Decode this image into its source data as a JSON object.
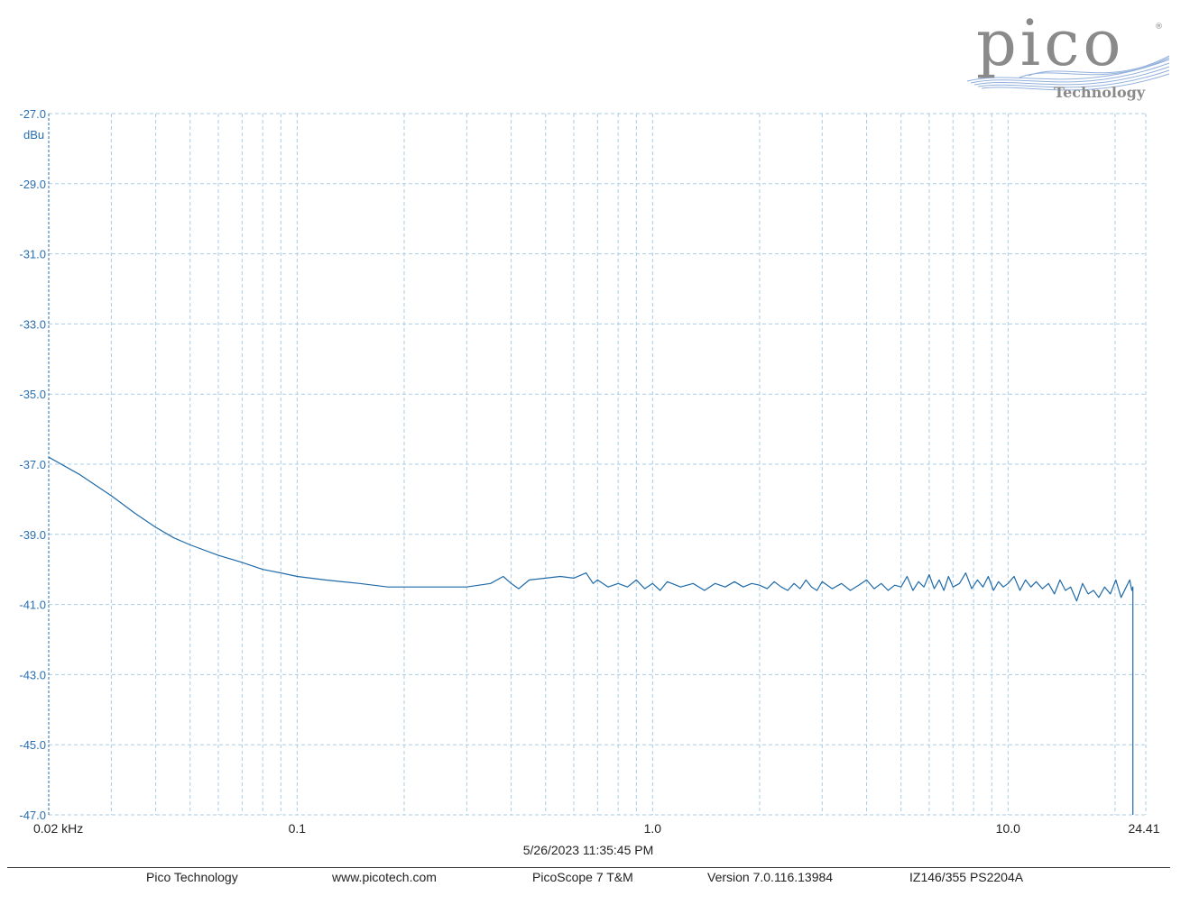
{
  "logo": {
    "wordmark": "pico",
    "subtitle": "Technology"
  },
  "chart_data": {
    "type": "line",
    "title": "",
    "xlabel": "",
    "ylabel": "",
    "y_unit": "dBu",
    "x_scale": "log",
    "xlim": [
      0.02,
      24.41
    ],
    "ylim": [
      -47.0,
      -27.0
    ],
    "x_tick_labels": [
      {
        "value": 0.02,
        "label": "0.02 kHz"
      },
      {
        "value": 0.1,
        "label": "0.1"
      },
      {
        "value": 1.0,
        "label": "1.0"
      },
      {
        "value": 10.0,
        "label": "10.0"
      },
      {
        "value": 24.41,
        "label": "24.41"
      }
    ],
    "y_tick_labels": [
      "-27.0",
      "-29.0",
      "-31.0",
      "-33.0",
      "-35.0",
      "-37.0",
      "-39.0",
      "-41.0",
      "-43.0",
      "-45.0",
      "-47.0"
    ],
    "grid": true,
    "grid_style": "dashed",
    "series_color": "#1f6aa8",
    "series": [
      {
        "name": "",
        "x": [
          0.02,
          0.0245,
          0.03,
          0.035,
          0.04,
          0.045,
          0.05,
          0.06,
          0.07,
          0.08,
          0.09,
          0.1,
          0.12,
          0.15,
          0.18,
          0.2,
          0.25,
          0.3,
          0.35,
          0.38,
          0.4,
          0.42,
          0.45,
          0.5,
          0.55,
          0.6,
          0.65,
          0.68,
          0.7,
          0.75,
          0.8,
          0.85,
          0.9,
          0.95,
          1.0,
          1.05,
          1.1,
          1.2,
          1.3,
          1.4,
          1.5,
          1.6,
          1.7,
          1.8,
          1.9,
          2.0,
          2.1,
          2.2,
          2.3,
          2.4,
          2.5,
          2.6,
          2.7,
          2.8,
          2.9,
          3.0,
          3.2,
          3.4,
          3.6,
          3.8,
          4.0,
          4.2,
          4.4,
          4.6,
          4.8,
          5.0,
          5.2,
          5.4,
          5.6,
          5.8,
          6.0,
          6.2,
          6.4,
          6.6,
          6.8,
          7.0,
          7.3,
          7.6,
          7.9,
          8.2,
          8.5,
          8.8,
          9.1,
          9.4,
          9.7,
          10.0,
          10.4,
          10.8,
          11.2,
          11.6,
          12.0,
          12.5,
          13.0,
          13.5,
          14.0,
          14.5,
          15.0,
          15.6,
          16.2,
          16.8,
          17.4,
          18.0,
          18.7,
          19.4,
          20.1,
          20.8,
          21.5,
          22.0,
          22.3,
          22.45
        ],
        "y": [
          -36.8,
          -37.3,
          -37.9,
          -38.4,
          -38.8,
          -39.1,
          -39.3,
          -39.6,
          -39.8,
          -40.0,
          -40.1,
          -40.2,
          -40.3,
          -40.4,
          -40.5,
          -40.5,
          -40.5,
          -40.5,
          -40.4,
          -40.2,
          -40.4,
          -40.55,
          -40.3,
          -40.25,
          -40.2,
          -40.25,
          -40.1,
          -40.4,
          -40.3,
          -40.5,
          -40.4,
          -40.5,
          -40.3,
          -40.55,
          -40.4,
          -40.6,
          -40.35,
          -40.5,
          -40.4,
          -40.6,
          -40.4,
          -40.5,
          -40.35,
          -40.5,
          -40.4,
          -40.45,
          -40.55,
          -40.35,
          -40.5,
          -40.6,
          -40.4,
          -40.55,
          -40.3,
          -40.5,
          -40.6,
          -40.35,
          -40.55,
          -40.4,
          -40.6,
          -40.45,
          -40.3,
          -40.55,
          -40.4,
          -40.6,
          -40.45,
          -40.5,
          -40.2,
          -40.6,
          -40.35,
          -40.5,
          -40.15,
          -40.55,
          -40.3,
          -40.6,
          -40.2,
          -40.5,
          -40.4,
          -40.1,
          -40.55,
          -40.3,
          -40.5,
          -40.2,
          -40.6,
          -40.35,
          -40.5,
          -40.4,
          -40.2,
          -40.6,
          -40.3,
          -40.5,
          -40.35,
          -40.55,
          -40.4,
          -40.7,
          -40.3,
          -40.6,
          -40.5,
          -40.9,
          -40.4,
          -40.7,
          -40.6,
          -40.8,
          -40.5,
          -40.7,
          -40.3,
          -40.8,
          -40.5,
          -40.3,
          -40.6,
          -40.5
        ]
      }
    ],
    "final_drop": {
      "x": 22.45,
      "y": -47.0
    }
  },
  "timestamp": "5/26/2023 11:35:45 PM",
  "footer": [
    "Pico Technology",
    "www.picotech.com",
    "PicoScope 7 T&M",
    "Version 7.0.116.13984",
    "IZ146/355 PS2204A"
  ]
}
